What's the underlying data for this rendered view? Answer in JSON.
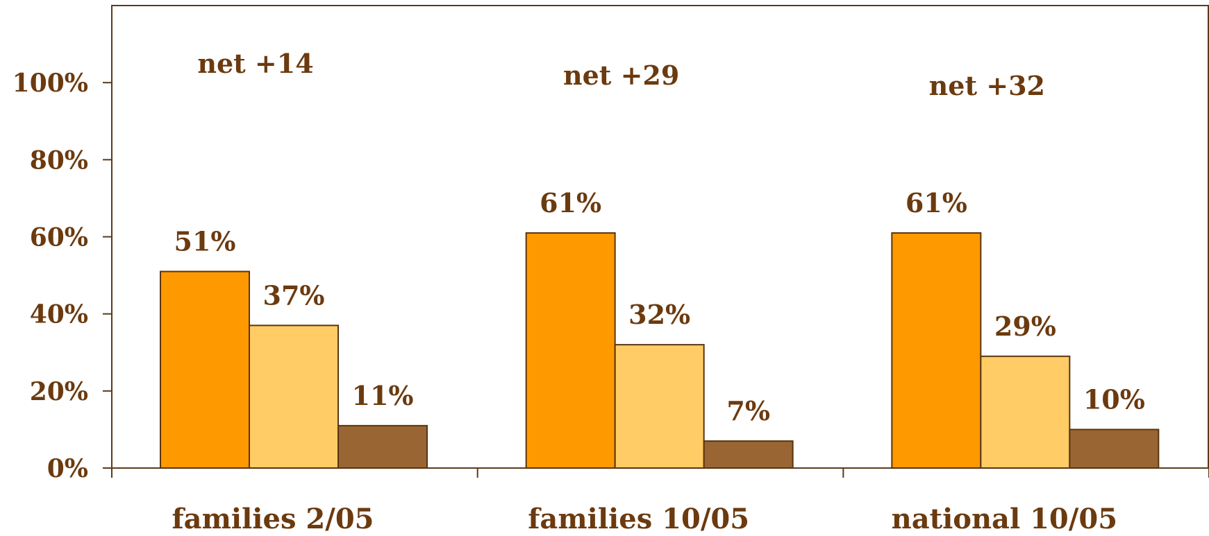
{
  "chart_data": {
    "type": "bar",
    "categories": [
      "families 2/05",
      "families 10/05",
      "national 10/05"
    ],
    "series": [
      {
        "values": [
          51,
          61,
          61
        ],
        "color": "#ff9900"
      },
      {
        "values": [
          37,
          32,
          29
        ],
        "color": "#ffcc66"
      },
      {
        "values": [
          11,
          7,
          10
        ],
        "color": "#996633"
      }
    ],
    "data_labels": [
      [
        "51%",
        "37%",
        "11%"
      ],
      [
        "61%",
        "32%",
        "7%"
      ],
      [
        "61%",
        "29%",
        "10%"
      ]
    ],
    "annotations": [
      "net +14",
      "net +29",
      "net +32"
    ],
    "yticks": [
      "0%",
      "20%",
      "40%",
      "60%",
      "80%",
      "100%"
    ],
    "ylim": [
      0,
      120
    ],
    "grid": false,
    "title": "",
    "xlabel": "",
    "ylabel": ""
  },
  "colors": {
    "text": "#6b3a0f",
    "axis": "#5a3a1a",
    "bar_stroke": "#5a3410"
  }
}
